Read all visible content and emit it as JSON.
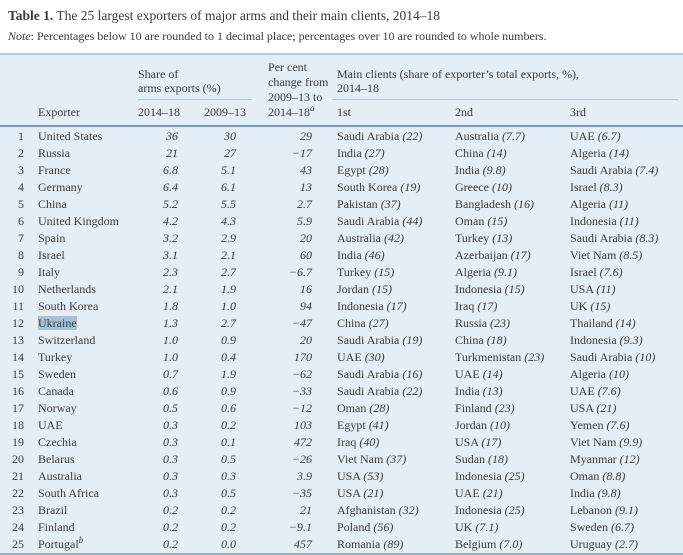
{
  "title": {
    "label": "Table 1.",
    "text": " The 25 largest exporters of major arms and their main clients, 2014–18"
  },
  "note": {
    "label": "Note",
    "text": ": Percentages below 10 are rounded to 1 decimal place; percentages over 10 are rounded to whole numbers."
  },
  "colors": {
    "page_bg": "#ffffff",
    "table_bg": "#e5eef4",
    "rule_light": "#aacddf",
    "rule_dark": "#6f9fbc",
    "rule_bottom": "#8fb9d0",
    "text": "#3a3a3a",
    "selection_highlight": "#a5c3d8"
  },
  "table": {
    "group_headers": {
      "share": {
        "text": "Share of\narms exports (%)"
      },
      "pct_change": {
        "text": "Per cent\nchange from\n2009–13 to\n2014–18",
        "sup": "a"
      },
      "main_clients": {
        "text": "Main clients (share of exporter’s total exports, %),\n2014–18"
      }
    },
    "columns": {
      "exporter": "Exporter",
      "share_2014_18": "2014–18",
      "share_2009_13": "2009–13",
      "first": "1st",
      "second": "2nd",
      "third": "3rd"
    },
    "rows": [
      {
        "rank": "1",
        "exporter": "United States",
        "share_2014_18": "36",
        "share_2009_13": "30",
        "pct_change": "29",
        "clients": [
          {
            "name": "Saudi Arabia",
            "share": "22"
          },
          {
            "name": "Australia",
            "share": "7.7"
          },
          {
            "name": "UAE",
            "share": "6.7"
          }
        ]
      },
      {
        "rank": "2",
        "exporter": "Russia",
        "share_2014_18": "21",
        "share_2009_13": "27",
        "pct_change": "−17",
        "clients": [
          {
            "name": "India",
            "share": "27"
          },
          {
            "name": "China",
            "share": "14"
          },
          {
            "name": "Algeria",
            "share": "14"
          }
        ]
      },
      {
        "rank": "3",
        "exporter": "France",
        "share_2014_18": "6.8",
        "share_2009_13": "5.1",
        "pct_change": "43",
        "clients": [
          {
            "name": "Egypt",
            "share": "28"
          },
          {
            "name": "India",
            "share": "9.8"
          },
          {
            "name": "Saudi Arabia",
            "share": "7.4"
          }
        ]
      },
      {
        "rank": "4",
        "exporter": "Germany",
        "share_2014_18": "6.4",
        "share_2009_13": "6.1",
        "pct_change": "13",
        "clients": [
          {
            "name": "South Korea",
            "share": "19"
          },
          {
            "name": "Greece",
            "share": "10"
          },
          {
            "name": "Israel",
            "share": "8.3"
          }
        ]
      },
      {
        "rank": "5",
        "exporter": "China",
        "share_2014_18": "5.2",
        "share_2009_13": "5.5",
        "pct_change": "2.7",
        "clients": [
          {
            "name": "Pakistan",
            "share": "37"
          },
          {
            "name": "Bangladesh",
            "share": "16"
          },
          {
            "name": "Algeria",
            "share": "11"
          }
        ]
      },
      {
        "rank": "6",
        "exporter": "United Kingdom",
        "share_2014_18": "4.2",
        "share_2009_13": "4.3",
        "pct_change": "5.9",
        "clients": [
          {
            "name": "Saudi Arabia",
            "share": "44"
          },
          {
            "name": "Oman",
            "share": "15"
          },
          {
            "name": "Indonesia",
            "share": "11"
          }
        ]
      },
      {
        "rank": "7",
        "exporter": "Spain",
        "share_2014_18": "3.2",
        "share_2009_13": "2.9",
        "pct_change": "20",
        "clients": [
          {
            "name": "Australia",
            "share": "42"
          },
          {
            "name": "Turkey",
            "share": "13"
          },
          {
            "name": "Saudi Arabia",
            "share": "8.3"
          }
        ]
      },
      {
        "rank": "8",
        "exporter": "Israel",
        "share_2014_18": "3.1",
        "share_2009_13": "2.1",
        "pct_change": "60",
        "clients": [
          {
            "name": "India",
            "share": "46"
          },
          {
            "name": "Azerbaijan",
            "share": "17"
          },
          {
            "name": "Viet Nam",
            "share": "8.5"
          }
        ]
      },
      {
        "rank": "9",
        "exporter": "Italy",
        "share_2014_18": "2.3",
        "share_2009_13": "2.7",
        "pct_change": "−6.7",
        "clients": [
          {
            "name": "Turkey",
            "share": "15"
          },
          {
            "name": "Algeria",
            "share": "9.1"
          },
          {
            "name": "Israel",
            "share": "7.6"
          }
        ]
      },
      {
        "rank": "10",
        "exporter": "Netherlands",
        "share_2014_18": "2.1",
        "share_2009_13": "1.9",
        "pct_change": "16",
        "clients": [
          {
            "name": "Jordan",
            "share": "15"
          },
          {
            "name": "Indonesia",
            "share": "15"
          },
          {
            "name": "USA",
            "share": "11"
          }
        ]
      },
      {
        "rank": "11",
        "exporter": "South Korea",
        "share_2014_18": "1.8",
        "share_2009_13": "1.0",
        "pct_change": "94",
        "clients": [
          {
            "name": "Indonesia",
            "share": "17"
          },
          {
            "name": "Iraq",
            "share": "17"
          },
          {
            "name": "UK",
            "share": "15"
          }
        ]
      },
      {
        "rank": "12",
        "exporter": "Ukraine",
        "highlight": true,
        "share_2014_18": "1.3",
        "share_2009_13": "2.7",
        "pct_change": "−47",
        "clients": [
          {
            "name": "China",
            "share": "27"
          },
          {
            "name": "Russia",
            "share": "23"
          },
          {
            "name": "Thailand",
            "share": "14"
          }
        ]
      },
      {
        "rank": "13",
        "exporter": "Switzerland",
        "share_2014_18": "1.0",
        "share_2009_13": "0.9",
        "pct_change": "20",
        "clients": [
          {
            "name": "Saudi Arabia",
            "share": "19"
          },
          {
            "name": "China",
            "share": "18"
          },
          {
            "name": "Indonesia",
            "share": "9.3"
          }
        ]
      },
      {
        "rank": "14",
        "exporter": "Turkey",
        "share_2014_18": "1.0",
        "share_2009_13": "0.4",
        "pct_change": "170",
        "clients": [
          {
            "name": "UAE",
            "share": "30"
          },
          {
            "name": "Turkmenistan",
            "share": "23"
          },
          {
            "name": "Saudi Arabia",
            "share": "10"
          }
        ]
      },
      {
        "rank": "15",
        "exporter": "Sweden",
        "share_2014_18": "0.7",
        "share_2009_13": "1.9",
        "pct_change": "−62",
        "clients": [
          {
            "name": "Saudi Arabia",
            "share": "16"
          },
          {
            "name": "UAE",
            "share": "14"
          },
          {
            "name": "Algeria",
            "share": "10"
          }
        ]
      },
      {
        "rank": "16",
        "exporter": "Canada",
        "share_2014_18": "0.6",
        "share_2009_13": "0.9",
        "pct_change": "−33",
        "clients": [
          {
            "name": "Saudi Arabia",
            "share": "22"
          },
          {
            "name": "India",
            "share": "13"
          },
          {
            "name": "UAE",
            "share": "7.6"
          }
        ]
      },
      {
        "rank": "17",
        "exporter": "Norway",
        "share_2014_18": "0.5",
        "share_2009_13": "0.6",
        "pct_change": "−12",
        "clients": [
          {
            "name": "Oman",
            "share": "28"
          },
          {
            "name": "Finland",
            "share": "23"
          },
          {
            "name": "USA",
            "share": "21"
          }
        ]
      },
      {
        "rank": "18",
        "exporter": "UAE",
        "share_2014_18": "0.3",
        "share_2009_13": "0.2",
        "pct_change": "103",
        "clients": [
          {
            "name": "Egypt",
            "share": "41"
          },
          {
            "name": "Jordan",
            "share": "10"
          },
          {
            "name": "Yemen",
            "share": "7.6"
          }
        ]
      },
      {
        "rank": "19",
        "exporter": "Czechia",
        "share_2014_18": "0.3",
        "share_2009_13": "0.1",
        "pct_change": "472",
        "clients": [
          {
            "name": "Iraq",
            "share": "40"
          },
          {
            "name": "USA",
            "share": "17"
          },
          {
            "name": "Viet Nam",
            "share": "9.9"
          }
        ]
      },
      {
        "rank": "20",
        "exporter": "Belarus",
        "share_2014_18": "0.3",
        "share_2009_13": "0.5",
        "pct_change": "−26",
        "clients": [
          {
            "name": "Viet Nam",
            "share": "37"
          },
          {
            "name": "Sudan",
            "share": "18"
          },
          {
            "name": "Myanmar",
            "share": "12"
          }
        ]
      },
      {
        "rank": "21",
        "exporter": "Australia",
        "share_2014_18": "0.3",
        "share_2009_13": "0.3",
        "pct_change": "3.9",
        "clients": [
          {
            "name": "USA",
            "share": "53"
          },
          {
            "name": "Indonesia",
            "share": "25"
          },
          {
            "name": "Oman",
            "share": "8.8"
          }
        ]
      },
      {
        "rank": "22",
        "exporter": "South Africa",
        "share_2014_18": "0.3",
        "share_2009_13": "0.5",
        "pct_change": "−35",
        "clients": [
          {
            "name": "USA",
            "share": "21"
          },
          {
            "name": "UAE",
            "share": "21"
          },
          {
            "name": "India",
            "share": "9.8"
          }
        ]
      },
      {
        "rank": "23",
        "exporter": "Brazil",
        "share_2014_18": "0.2",
        "share_2009_13": "0.2",
        "pct_change": "21",
        "clients": [
          {
            "name": "Afghanistan",
            "share": "32"
          },
          {
            "name": "Indonesia",
            "share": "25"
          },
          {
            "name": "Lebanon",
            "share": "9.1"
          }
        ]
      },
      {
        "rank": "24",
        "exporter": "Finland",
        "share_2014_18": "0.2",
        "share_2009_13": "0.2",
        "pct_change": "−9.1",
        "clients": [
          {
            "name": "Poland",
            "share": "56"
          },
          {
            "name": "UK",
            "share": "7.1"
          },
          {
            "name": "Sweden",
            "share": "6.7"
          }
        ]
      },
      {
        "rank": "25",
        "exporter": "Portugal",
        "exporter_sup": "b",
        "share_2014_18": "0.2",
        "share_2009_13": "0.0",
        "pct_change": "457",
        "clients": [
          {
            "name": "Romania",
            "share": "89"
          },
          {
            "name": "Belgium",
            "share": "7.0"
          },
          {
            "name": "Uruguay",
            "share": "2.7"
          }
        ]
      }
    ]
  }
}
